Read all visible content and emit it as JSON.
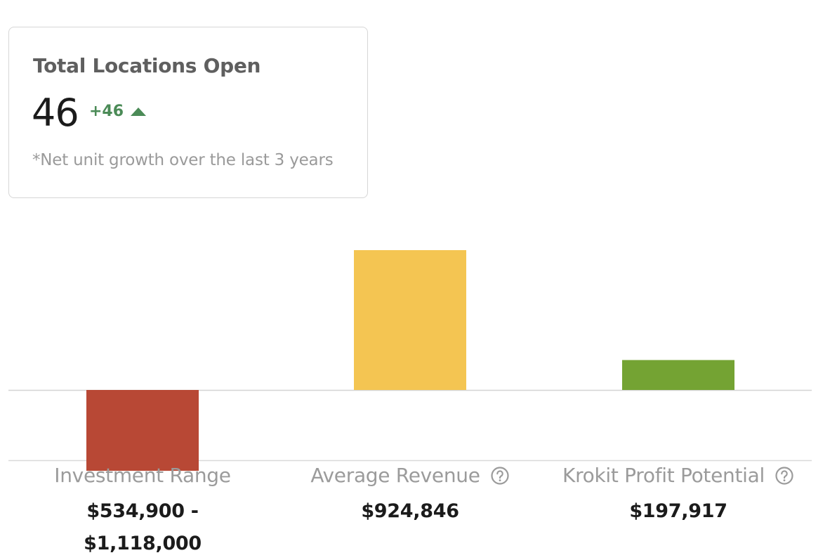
{
  "card": {
    "title": "Total Locations Open",
    "value": "46",
    "change": "+46",
    "change_direction": "up",
    "change_color": "#4b8b57",
    "note": "*Net unit growth over the last 3 years"
  },
  "chart_data": {
    "type": "bar",
    "categories": [
      "Investment Range",
      "Average Revenue",
      "Krokit Profit Potential"
    ],
    "values": [
      -534900,
      924846,
      197917
    ],
    "colors": [
      "#b84835",
      "#f4c552",
      "#74a333"
    ],
    "value_labels": [
      [
        "$534,900 -",
        "$1,118,000"
      ],
      [
        "$924,846"
      ],
      [
        "$197,917"
      ]
    ],
    "help_icon": [
      false,
      true,
      true
    ],
    "title": "",
    "xlabel": "",
    "ylabel": ""
  }
}
